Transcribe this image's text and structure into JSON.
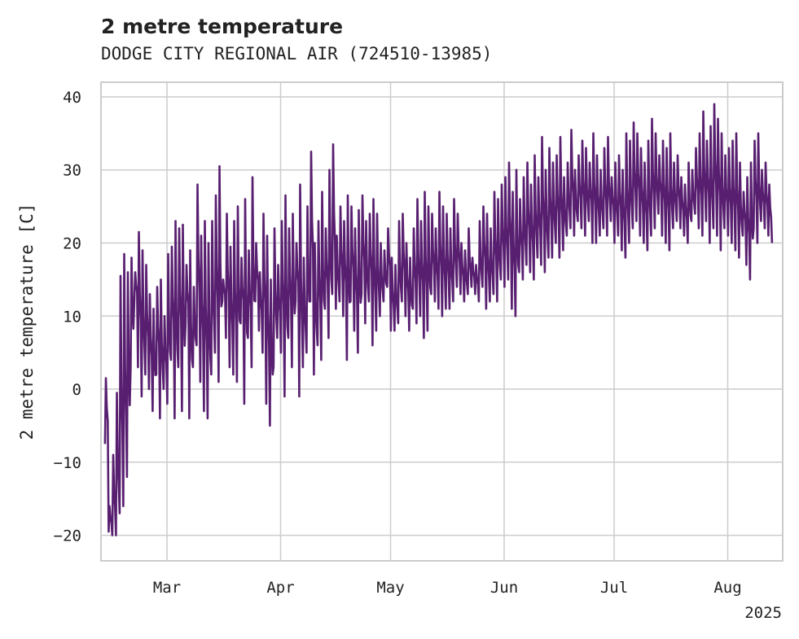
{
  "chart_data": {
    "type": "line",
    "title": "2 metre temperature",
    "subtitle": "DODGE CITY REGIONAL AIR (724510-13985)",
    "ylabel": "2 metre temperature [C]",
    "xlabel": "",
    "year_label": "2025",
    "xlim": [
      "2025-02-11",
      "2025-08-16"
    ],
    "ylim": [
      -23.5,
      42
    ],
    "yticks": [
      -20,
      -10,
      0,
      10,
      20,
      30,
      40
    ],
    "xticks": [
      {
        "date": "2025-03-01",
        "label": "Mar"
      },
      {
        "date": "2025-04-01",
        "label": "Apr"
      },
      {
        "date": "2025-05-01",
        "label": "May"
      },
      {
        "date": "2025-06-01",
        "label": "Jun"
      },
      {
        "date": "2025-07-01",
        "label": "Jul"
      },
      {
        "date": "2025-08-01",
        "label": "Aug"
      }
    ],
    "grid": true,
    "legend": "none",
    "color": "#581f70",
    "series": [
      {
        "x": [
          "2025-02-12",
          "2025-02-13",
          "2025-02-14",
          "2025-02-15",
          "2025-02-16",
          "2025-02-17",
          "2025-02-18",
          "2025-02-19",
          "2025-02-20",
          "2025-02-21",
          "2025-02-22",
          "2025-02-23",
          "2025-02-24",
          "2025-02-25",
          "2025-02-26",
          "2025-02-27",
          "2025-02-28",
          "2025-03-01",
          "2025-03-02",
          "2025-03-03",
          "2025-03-04",
          "2025-03-05",
          "2025-03-06",
          "2025-03-07",
          "2025-03-08",
          "2025-03-09",
          "2025-03-10",
          "2025-03-11",
          "2025-03-12",
          "2025-03-13",
          "2025-03-14",
          "2025-03-15",
          "2025-03-16",
          "2025-03-17",
          "2025-03-18",
          "2025-03-19",
          "2025-03-20",
          "2025-03-21",
          "2025-03-22",
          "2025-03-23",
          "2025-03-24",
          "2025-03-25",
          "2025-03-26",
          "2025-03-27",
          "2025-03-28",
          "2025-03-29",
          "2025-03-30",
          "2025-03-31",
          "2025-04-01",
          "2025-04-02",
          "2025-04-03",
          "2025-04-04",
          "2025-04-05",
          "2025-04-06",
          "2025-04-07",
          "2025-04-08",
          "2025-04-09",
          "2025-04-10",
          "2025-04-11",
          "2025-04-12",
          "2025-04-13",
          "2025-04-14",
          "2025-04-15",
          "2025-04-16",
          "2025-04-17",
          "2025-04-18",
          "2025-04-19",
          "2025-04-20",
          "2025-04-21",
          "2025-04-22",
          "2025-04-23",
          "2025-04-24",
          "2025-04-25",
          "2025-04-26",
          "2025-04-27",
          "2025-04-28",
          "2025-04-29",
          "2025-04-30",
          "2025-05-01",
          "2025-05-02",
          "2025-05-03",
          "2025-05-04",
          "2025-05-05",
          "2025-05-06",
          "2025-05-07",
          "2025-05-08",
          "2025-05-09",
          "2025-05-10",
          "2025-05-11",
          "2025-05-12",
          "2025-05-13",
          "2025-05-14",
          "2025-05-15",
          "2025-05-16",
          "2025-05-17",
          "2025-05-18",
          "2025-05-19",
          "2025-05-20",
          "2025-05-21",
          "2025-05-22",
          "2025-05-23",
          "2025-05-24",
          "2025-05-25",
          "2025-05-26",
          "2025-05-27",
          "2025-05-28",
          "2025-05-29",
          "2025-05-30",
          "2025-05-31",
          "2025-06-01",
          "2025-06-02",
          "2025-06-03",
          "2025-06-04",
          "2025-06-05",
          "2025-06-06",
          "2025-06-07",
          "2025-06-08",
          "2025-06-09",
          "2025-06-10",
          "2025-06-11",
          "2025-06-12",
          "2025-06-13",
          "2025-06-14",
          "2025-06-15",
          "2025-06-16",
          "2025-06-17",
          "2025-06-18",
          "2025-06-19",
          "2025-06-20",
          "2025-06-21",
          "2025-06-22",
          "2025-06-23",
          "2025-06-24",
          "2025-06-25",
          "2025-06-26",
          "2025-06-27",
          "2025-06-28",
          "2025-06-29",
          "2025-06-30",
          "2025-07-01",
          "2025-07-02",
          "2025-07-03",
          "2025-07-04",
          "2025-07-05",
          "2025-07-06",
          "2025-07-07",
          "2025-07-08",
          "2025-07-09",
          "2025-07-10",
          "2025-07-11",
          "2025-07-12",
          "2025-07-13",
          "2025-07-14",
          "2025-07-15",
          "2025-07-16",
          "2025-07-17",
          "2025-07-18",
          "2025-07-19",
          "2025-07-20",
          "2025-07-21",
          "2025-07-22",
          "2025-07-23",
          "2025-07-24",
          "2025-07-25",
          "2025-07-26",
          "2025-07-27",
          "2025-07-28",
          "2025-07-29",
          "2025-07-30",
          "2025-07-31",
          "2025-08-01",
          "2025-08-02",
          "2025-08-03",
          "2025-08-04",
          "2025-08-05",
          "2025-08-06",
          "2025-08-07",
          "2025-08-08",
          "2025-08-09",
          "2025-08-10",
          "2025-08-11",
          "2025-08-12",
          "2025-08-13",
          "2025-08-14",
          "2025-08-15"
        ],
        "min": [
          -7.5,
          -19.5,
          -20,
          -20,
          -17,
          -16,
          -12,
          3,
          12,
          3,
          -1,
          2,
          0,
          -3,
          2,
          -4,
          0,
          -2,
          4,
          -4,
          3,
          -3,
          9,
          -4,
          3,
          6,
          1,
          -3,
          -4,
          2,
          5,
          1,
          12,
          7,
          3,
          2,
          1,
          9,
          -2,
          7,
          3,
          12,
          8,
          5,
          -2,
          -5,
          3,
          7,
          5,
          -1,
          7,
          3,
          12,
          -1,
          3,
          5,
          12,
          2,
          6,
          4,
          11,
          7,
          13,
          11,
          12,
          10,
          4,
          12,
          8,
          5,
          13,
          9,
          12,
          6,
          8,
          10,
          12,
          14,
          8,
          8,
          9,
          12,
          10,
          8,
          11,
          9,
          10,
          7,
          8,
          13,
          12,
          11,
          10,
          11,
          11,
          12,
          14,
          13,
          12,
          13,
          14,
          13,
          12,
          14,
          11,
          12,
          13,
          12,
          15,
          14,
          15,
          11,
          10,
          16,
          15,
          17,
          16,
          15,
          18,
          17,
          16,
          18,
          18,
          20,
          18,
          19,
          21,
          22,
          21,
          23,
          22,
          21,
          23,
          20,
          20,
          21,
          22,
          21,
          23,
          20,
          21,
          19,
          18,
          20,
          22,
          23,
          21,
          20,
          19,
          21,
          22,
          24,
          21,
          20,
          19,
          22,
          23,
          22,
          21,
          20,
          23,
          24,
          22,
          21,
          23,
          20,
          22,
          21,
          19,
          22,
          21,
          20,
          19,
          18,
          21,
          17,
          15,
          22,
          20,
          23,
          22,
          21,
          20,
          22,
          19,
          21
        ],
        "max": [
          1.5,
          -16,
          -9,
          -0.5,
          15.5,
          18.5,
          16,
          18,
          16,
          21.5,
          19,
          17,
          13,
          11,
          14,
          15,
          10,
          18.5,
          19.5,
          23,
          22,
          22.5,
          17,
          19,
          14,
          28,
          21,
          23,
          20,
          23,
          26.5,
          30.5,
          15,
          24,
          19.5,
          23,
          25,
          18,
          26,
          19,
          29,
          20,
          16,
          24,
          21,
          15,
          22,
          17,
          23,
          26.5,
          22,
          24,
          20,
          28,
          18,
          25,
          32.5,
          20,
          23,
          27,
          22,
          30,
          33.5,
          21,
          25,
          23,
          26.5,
          25,
          22,
          24.5,
          26.5,
          23,
          24,
          26,
          24,
          20,
          19,
          22,
          18,
          17,
          23,
          24,
          20,
          18,
          22,
          26,
          23,
          27,
          25,
          24,
          22,
          27,
          25,
          24,
          22,
          26,
          24,
          20,
          19,
          22,
          18,
          17,
          23,
          25,
          24,
          22,
          27,
          26,
          28,
          29,
          31,
          27,
          30,
          26,
          29,
          31,
          28,
          32,
          29,
          34.5,
          30,
          33,
          31,
          32,
          34.5,
          29,
          31,
          35.5,
          30,
          32,
          34,
          33,
          31,
          35,
          32,
          30,
          33,
          34.5,
          29,
          31,
          32,
          30,
          35,
          34,
          36.5,
          35,
          33,
          31,
          34,
          37,
          35,
          32,
          34,
          33,
          35,
          31,
          32,
          29,
          28,
          31,
          30,
          33,
          35,
          38,
          34,
          36,
          39,
          37,
          35,
          32,
          33,
          34,
          35,
          31,
          27,
          29,
          31,
          34,
          35,
          30,
          31,
          28
        ],
        "name": ""
      }
    ]
  }
}
